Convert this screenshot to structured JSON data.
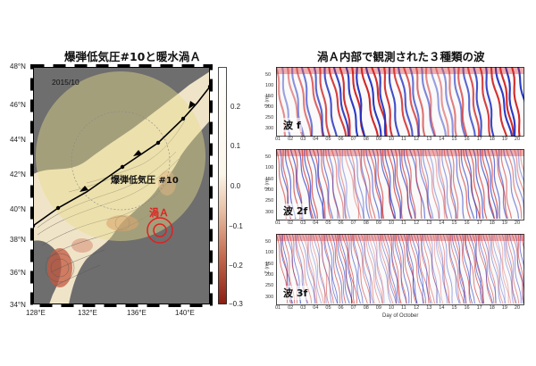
{
  "left": {
    "title": "爆弾低気圧#10と暖水渦Ａ",
    "date": "2015/10",
    "cyclone_label": "爆弾低気圧 #10",
    "eddy_label": "渦Ａ",
    "lat_ticks": [
      "48°N",
      "46°N",
      "44°N",
      "42°N",
      "40°N",
      "38°N",
      "36°N",
      "34°N"
    ],
    "lon_ticks": [
      "128°E",
      "132°E",
      "136°E",
      "140°E"
    ],
    "colorbar_ticks": [
      "0.2",
      "0.1",
      "0.0",
      "−0.1",
      "−0.2",
      "−0.3"
    ]
  },
  "right": {
    "title": "渦Ａ内部で観測された３種類の波",
    "panels": [
      {
        "label": "波 f"
      },
      {
        "label": "波 2f"
      },
      {
        "label": "波 3f"
      }
    ],
    "depth_ticks": [
      "50",
      "100",
      "150",
      "200",
      "250",
      "300"
    ],
    "day_ticks": [
      "01",
      "02",
      "03",
      "04",
      "05",
      "06",
      "07",
      "08",
      "09",
      "10",
      "11",
      "12",
      "13",
      "14",
      "15",
      "16",
      "17",
      "18",
      "19",
      "20"
    ],
    "y_axis_label": "Z (m)",
    "x_axis_label": "Day of October"
  },
  "colors": {
    "land": "#707070",
    "sea_positive": "#f2e6c4",
    "sea_negative": "#b03020",
    "circle_fill": "#e8e0a0",
    "eddy_ring": "#e02020",
    "track": "#000000",
    "wave_red": "#d02020",
    "wave_blue": "#2030c0"
  }
}
